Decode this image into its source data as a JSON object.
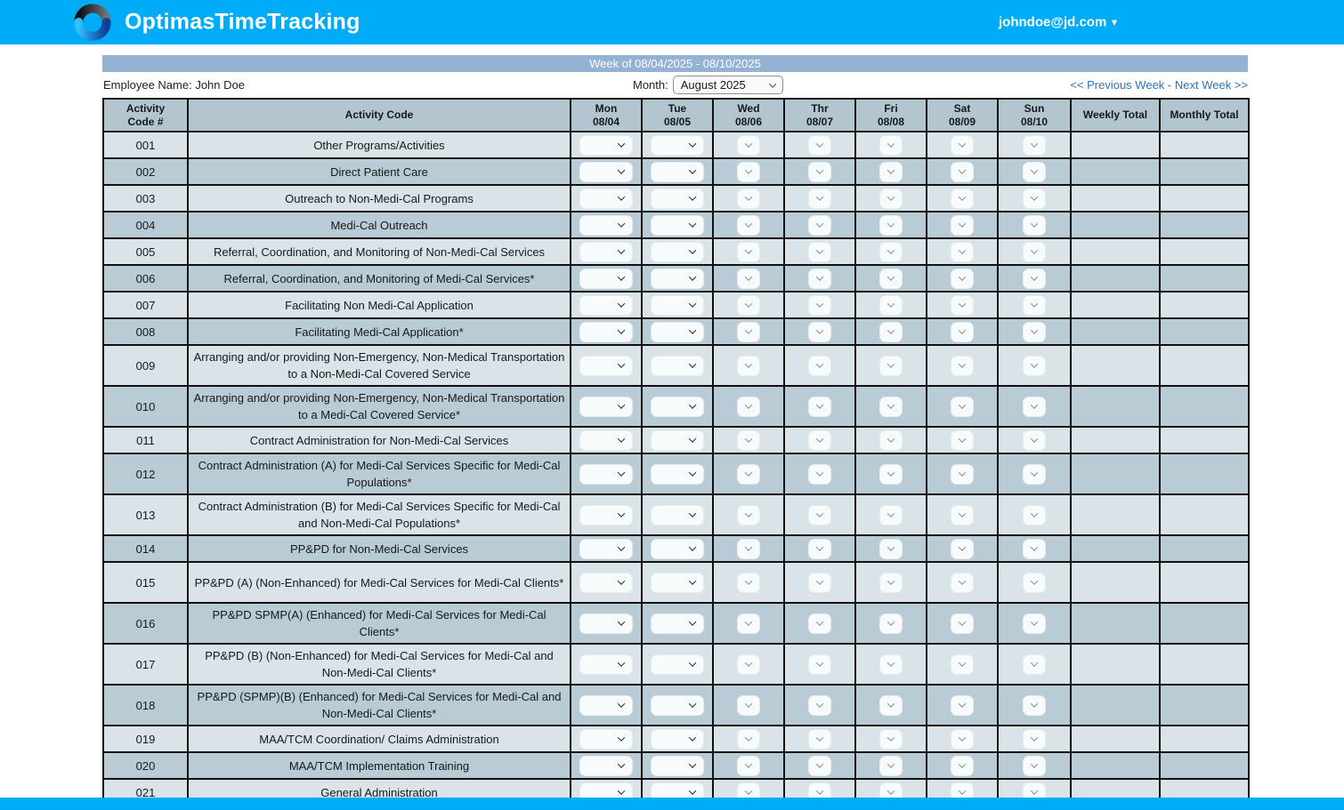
{
  "header": {
    "app_title": "OptimasTimeTracking",
    "account_email": "johndoe@jd.com",
    "caret": "▾"
  },
  "week_bar": {
    "title": "Week of 08/04/2025 - 08/10/2025"
  },
  "controls": {
    "employee_name": "Employee Name: John Doe",
    "month_label": "Month:",
    "month_value": "August 2025",
    "prev_week": "<< Previous Week",
    "separator": " - ",
    "next_week": "Next Week >>"
  },
  "table": {
    "col_headers": {
      "code_line1": "Activity",
      "code_line2": "Code #",
      "activity": "Activity Code",
      "weekly_total": "Weekly Total",
      "monthly_total": "Monthly Total"
    },
    "days": [
      {
        "label": "Mon",
        "date": "08/04",
        "enabled": true
      },
      {
        "label": "Tue",
        "date": "08/05",
        "enabled": true
      },
      {
        "label": "Wed",
        "date": "08/06",
        "enabled": false
      },
      {
        "label": "Thr",
        "date": "08/07",
        "enabled": false
      },
      {
        "label": "Fri",
        "date": "08/08",
        "enabled": false
      },
      {
        "label": "Sat",
        "date": "08/09",
        "enabled": false
      },
      {
        "label": "Sun",
        "date": "08/10",
        "enabled": false
      }
    ],
    "rows": [
      {
        "code": "001",
        "activity": "Other Programs/Activities",
        "lines": 1
      },
      {
        "code": "002",
        "activity": "Direct Patient Care",
        "lines": 1
      },
      {
        "code": "003",
        "activity": "Outreach to Non-Medi-Cal Programs",
        "lines": 1
      },
      {
        "code": "004",
        "activity": "Medi-Cal Outreach",
        "lines": 1
      },
      {
        "code": "005",
        "activity": "Referral, Coordination, and Monitoring of Non-Medi-Cal Services",
        "lines": 1
      },
      {
        "code": "006",
        "activity": "Referral, Coordination, and Monitoring of Medi-Cal Services*",
        "lines": 1
      },
      {
        "code": "007",
        "activity": "Facilitating Non Medi-Cal Application",
        "lines": 1
      },
      {
        "code": "008",
        "activity": "Facilitating Medi-Cal Application*",
        "lines": 1
      },
      {
        "code": "009",
        "activity": "Arranging and/or providing Non-Emergency, Non-Medical Transportation to a Non-Medi-Cal Covered Service",
        "lines": 2
      },
      {
        "code": "010",
        "activity": "Arranging and/or providing Non-Emergency, Non-Medical Transportation to a Medi-Cal Covered Service*",
        "lines": 2
      },
      {
        "code": "011",
        "activity": "Contract Administration for Non-Medi-Cal Services",
        "lines": 1
      },
      {
        "code": "012",
        "activity": "Contract Administration (A) for Medi-Cal Services Specific for Medi-Cal Populations*",
        "lines": 2
      },
      {
        "code": "013",
        "activity": "Contract Administration (B) for Medi-Cal Services Specific for Medi-Cal and Non-Medi-Cal Populations*",
        "lines": 2
      },
      {
        "code": "014",
        "activity": "PP&PD for Non-Medi-Cal Services",
        "lines": 1
      },
      {
        "code": "015",
        "activity": "PP&PD (A) (Non-Enhanced) for Medi-Cal Services for Medi-Cal Clients*",
        "lines": 2
      },
      {
        "code": "016",
        "activity": "PP&PD SPMP(A) (Enhanced) for Medi-Cal Services for Medi-Cal Clients*",
        "lines": 2
      },
      {
        "code": "017",
        "activity": "PP&PD (B) (Non-Enhanced) for Medi-Cal Services for Medi-Cal and Non-Medi-Cal Clients*",
        "lines": 2
      },
      {
        "code": "018",
        "activity": "PP&PD (SPMP)(B) (Enhanced) for Medi-Cal Services for Medi-Cal and Non-Medi-Cal Clients*",
        "lines": 2
      },
      {
        "code": "019",
        "activity": "MAA/TCM Coordination/ Claims Administration",
        "lines": 1
      },
      {
        "code": "020",
        "activity": "MAA/TCM Implementation Training",
        "lines": 1
      },
      {
        "code": "021",
        "activity": "General Administration",
        "lines": 1
      }
    ]
  },
  "colors": {
    "header_blue": "#00acf8",
    "week_bar_blue": "#93b2d4",
    "table_header_bg": "#b3c6d0",
    "row_light": "#dae3e8",
    "row_dark": "#b9cbd4",
    "link_blue": "#2e75b6"
  }
}
